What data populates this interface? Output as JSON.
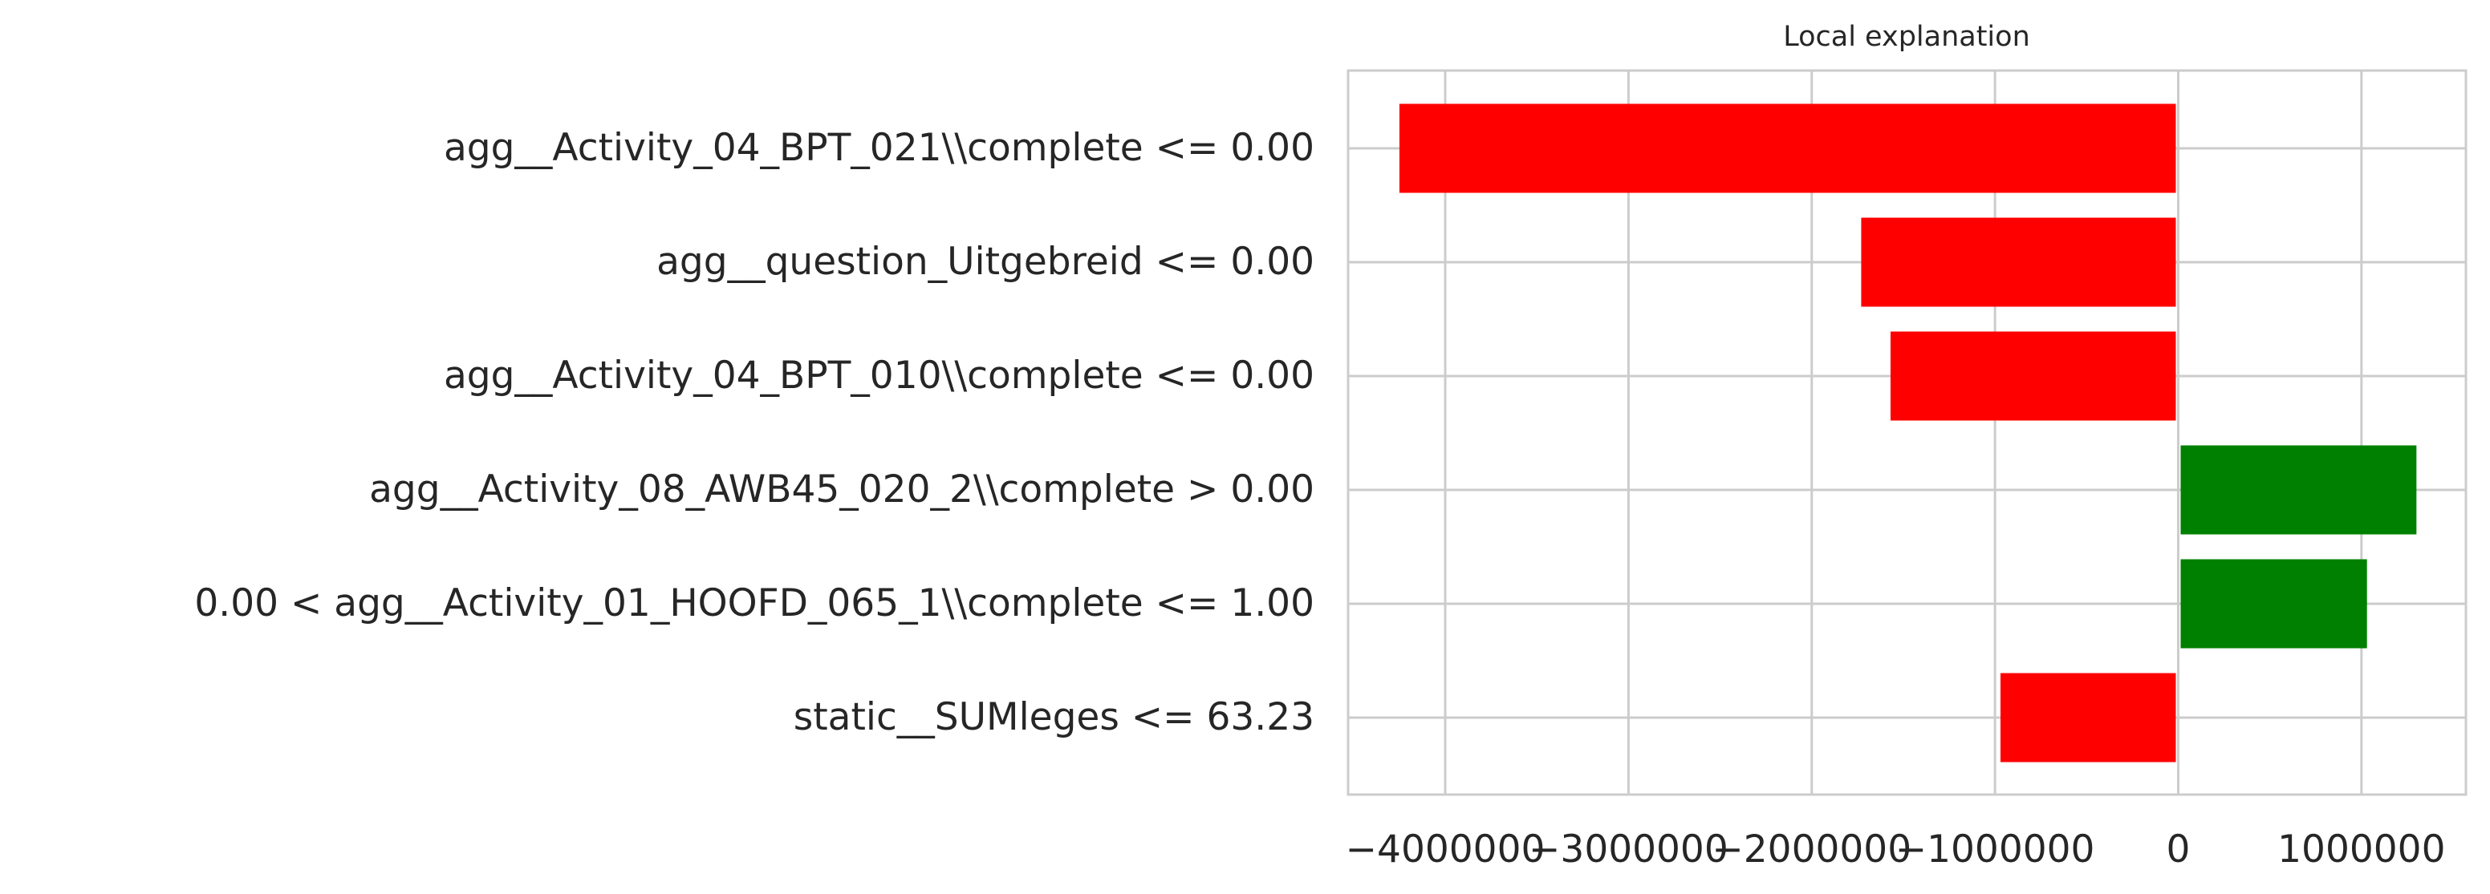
{
  "chart_data": {
    "type": "bar",
    "orientation": "horizontal",
    "title": "Local explanation",
    "xlabel": "",
    "ylabel": "",
    "categories": [
      "agg__Activity_04_BPT_021\\\\complete <= 0.00",
      "agg__question_Uitgebreid <= 0.00",
      "agg__Activity_04_BPT_010\\\\complete <= 0.00",
      "agg__Activity_08_AWB45_020_2\\\\complete > 0.00",
      "0.00 < agg__Activity_01_HOOFD_065_1\\\\complete <= 1.00",
      "static__SUMleges <= 63.23"
    ],
    "values": [
      -4250000,
      -1730000,
      -1570000,
      1300000,
      1030000,
      -970000
    ],
    "xlim": [
      -4530000,
      1570000
    ],
    "xticks": [
      -4000000,
      -3000000,
      -2000000,
      -1000000,
      0,
      1000000
    ],
    "xtick_labels": [
      "−4000000",
      "−3000000",
      "−2000000",
      "−1000000",
      "0",
      "1000000"
    ],
    "grid": true,
    "colors": {
      "negative": "#ff0000",
      "positive": "#008000",
      "grid": "#cccccc",
      "frame": "#cccccc",
      "text": "#262626"
    }
  }
}
